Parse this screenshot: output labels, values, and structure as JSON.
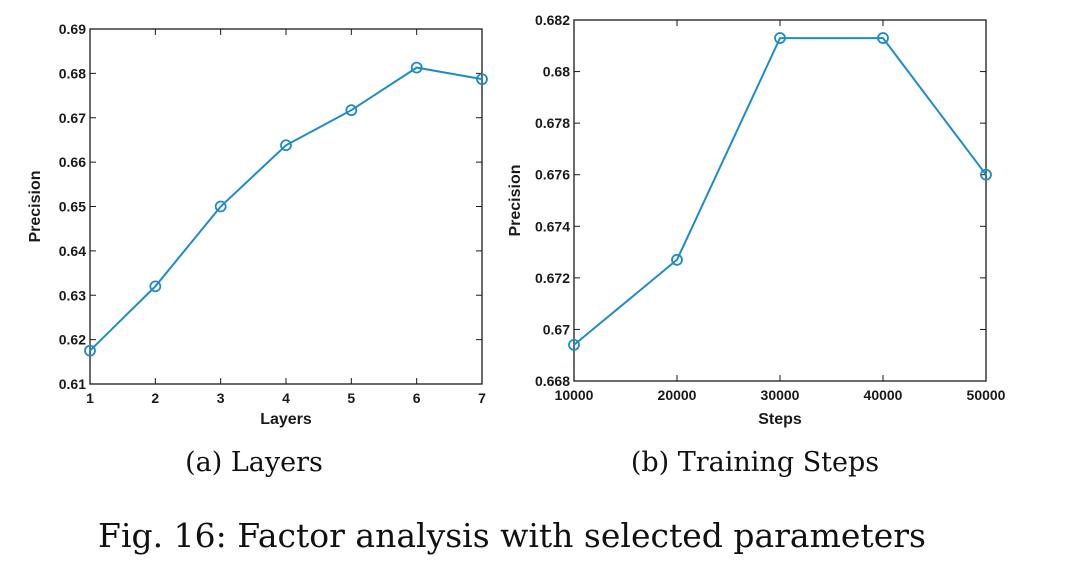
{
  "figure": {
    "caption": "Fig. 16: Factor analysis with selected parameters"
  },
  "colors": {
    "series": "#1f8cc8",
    "axis": "#1a1a1a"
  },
  "chart_data": [
    {
      "type": "line",
      "subcaption": "(a) Layers",
      "xlabel": "Layers",
      "ylabel": "Precision",
      "x": [
        1,
        2,
        3,
        4,
        5,
        6,
        7
      ],
      "xticks": [
        "1",
        "2",
        "3",
        "4",
        "5",
        "6",
        "7"
      ],
      "xlim": [
        1,
        7
      ],
      "ylim": [
        0.61,
        0.69
      ],
      "yticks": [
        "0.61",
        "0.62",
        "0.63",
        "0.64",
        "0.65",
        "0.66",
        "0.67",
        "0.68",
        "0.69"
      ],
      "series": [
        {
          "values": [
            0.6175,
            0.632,
            0.65,
            0.6638,
            0.6717,
            0.6813,
            0.6787
          ],
          "marker": "circle"
        }
      ],
      "grid": false
    },
    {
      "type": "line",
      "subcaption": "(b) Training Steps",
      "xlabel": "Steps",
      "ylabel": "Precision",
      "x": [
        10000,
        20000,
        30000,
        40000,
        50000
      ],
      "xticks": [
        "10000",
        "20000",
        "30000",
        "40000",
        "50000"
      ],
      "xlim": [
        10000,
        50000
      ],
      "ylim": [
        0.668,
        0.682
      ],
      "yticks": [
        "0.668",
        "0.67",
        "0.672",
        "0.674",
        "0.676",
        "0.678",
        "0.68",
        "0.682"
      ],
      "series": [
        {
          "values": [
            0.6694,
            0.6727,
            0.6813,
            0.6813,
            0.676
          ],
          "marker": "circle"
        }
      ],
      "grid": false
    }
  ]
}
